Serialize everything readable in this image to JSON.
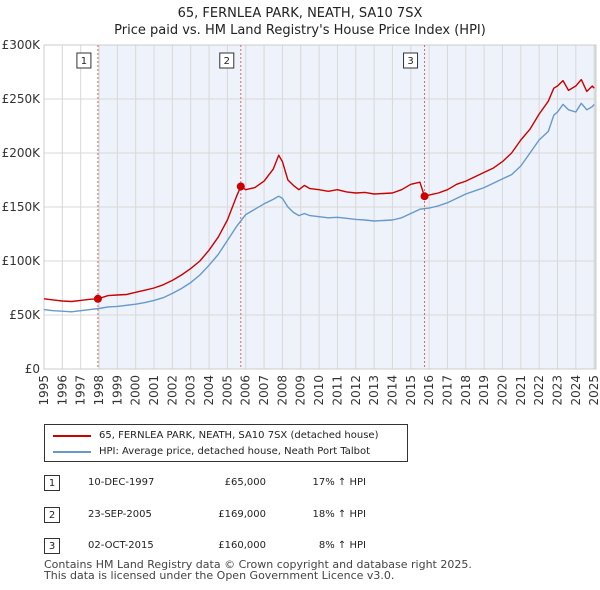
{
  "chart_data": {
    "type": "line",
    "title": "65, FERNLEA PARK, NEATH, SA10 7SX",
    "subtitle": "Price paid vs. HM Land Registry's House Price Index (HPI)",
    "xlabel": "",
    "ylabel": "",
    "xlim": [
      1995,
      2025.1
    ],
    "ylim": [
      0,
      300000
    ],
    "x_ticks": [
      1995,
      1996,
      1997,
      1998,
      1999,
      2000,
      2001,
      2002,
      2003,
      2004,
      2005,
      2006,
      2007,
      2008,
      2009,
      2010,
      2011,
      2012,
      2013,
      2014,
      2015,
      2016,
      2017,
      2018,
      2019,
      2020,
      2021,
      2022,
      2023,
      2024,
      2025
    ],
    "y_ticks": [
      {
        "value": 0,
        "label": "£0"
      },
      {
        "value": 50000,
        "label": "£50K"
      },
      {
        "value": 100000,
        "label": "£100K"
      },
      {
        "value": 150000,
        "label": "£150K"
      },
      {
        "value": 200000,
        "label": "£200K"
      },
      {
        "value": 250000,
        "label": "£250K"
      },
      {
        "value": 300000,
        "label": "£300K"
      }
    ],
    "grid": true,
    "series": [
      {
        "name": "65, FERNLEA PARK, NEATH, SA10 7SX (detached house)",
        "color": "#cc0000",
        "x": [
          1995.0,
          1995.5,
          1996.0,
          1996.5,
          1997.0,
          1997.5,
          1997.94,
          1998.5,
          1999.0,
          1999.5,
          2000.0,
          2000.5,
          2001.0,
          2001.5,
          2002.0,
          2002.5,
          2003.0,
          2003.5,
          2004.0,
          2004.5,
          2005.0,
          2005.5,
          2005.73,
          2006.0,
          2006.5,
          2007.0,
          2007.5,
          2007.8,
          2008.0,
          2008.3,
          2008.6,
          2008.9,
          2009.2,
          2009.5,
          2010.0,
          2010.5,
          2011.0,
          2011.5,
          2012.0,
          2012.5,
          2013.0,
          2013.5,
          2014.0,
          2014.5,
          2015.0,
          2015.5,
          2015.75,
          2016.0,
          2016.5,
          2017.0,
          2017.5,
          2018.0,
          2018.5,
          2019.0,
          2019.5,
          2020.0,
          2020.5,
          2021.0,
          2021.5,
          2022.0,
          2022.5,
          2022.8,
          2023.0,
          2023.3,
          2023.6,
          2024.0,
          2024.3,
          2024.6,
          2024.9,
          2025.0
        ],
        "values": [
          65000,
          64000,
          63000,
          62500,
          63500,
          64500,
          65000,
          68000,
          68500,
          69000,
          71000,
          73000,
          75000,
          78000,
          82000,
          87000,
          93000,
          100000,
          110000,
          122000,
          138000,
          160000,
          169000,
          166000,
          168000,
          174000,
          185000,
          198000,
          192000,
          175000,
          170000,
          166000,
          170000,
          167000,
          166000,
          164500,
          166000,
          164000,
          163000,
          163500,
          162000,
          162500,
          163000,
          166000,
          171000,
          173000,
          160000,
          161000,
          163000,
          166000,
          171000,
          174000,
          178000,
          182000,
          186000,
          192000,
          200000,
          212000,
          222000,
          236000,
          248000,
          260000,
          262000,
          267000,
          258000,
          262000,
          268000,
          257000,
          262000,
          260000
        ]
      },
      {
        "name": "HPI: Average price, detached house, Neath Port Talbot",
        "color": "#6699cc",
        "x": [
          1995.0,
          1995.5,
          1996.0,
          1996.5,
          1997.0,
          1997.5,
          1998.0,
          1998.5,
          1999.0,
          1999.5,
          2000.0,
          2000.5,
          2001.0,
          2001.5,
          2002.0,
          2002.5,
          2003.0,
          2003.5,
          2004.0,
          2004.5,
          2005.0,
          2005.5,
          2006.0,
          2006.5,
          2007.0,
          2007.5,
          2007.8,
          2008.0,
          2008.3,
          2008.6,
          2008.9,
          2009.2,
          2009.5,
          2010.0,
          2010.5,
          2011.0,
          2011.5,
          2012.0,
          2012.5,
          2013.0,
          2013.5,
          2014.0,
          2014.5,
          2015.0,
          2015.5,
          2016.0,
          2016.5,
          2017.0,
          2017.5,
          2018.0,
          2018.5,
          2019.0,
          2019.5,
          2020.0,
          2020.5,
          2021.0,
          2021.5,
          2022.0,
          2022.5,
          2022.8,
          2023.0,
          2023.3,
          2023.6,
          2024.0,
          2024.3,
          2024.6,
          2024.9,
          2025.0
        ],
        "values": [
          55000,
          54000,
          53500,
          53000,
          54000,
          55000,
          56000,
          57500,
          58000,
          59000,
          60000,
          61500,
          63500,
          66000,
          70000,
          74500,
          80000,
          87000,
          96000,
          106000,
          119000,
          132000,
          143000,
          148000,
          153000,
          157000,
          160000,
          158000,
          150000,
          145000,
          142000,
          144000,
          142000,
          141000,
          140000,
          140500,
          139500,
          138500,
          138000,
          137000,
          137500,
          138000,
          140000,
          144000,
          148000,
          149000,
          151000,
          154000,
          158000,
          162000,
          165000,
          168000,
          172000,
          176000,
          180000,
          188000,
          200000,
          212000,
          220000,
          235000,
          238000,
          245000,
          240000,
          238000,
          246000,
          240000,
          243000,
          245000
        ]
      }
    ],
    "markers": [
      {
        "label": "1",
        "date": "10-DEC-1997",
        "x": 1997.94,
        "value": 65000,
        "price_text": "£65,000",
        "hpi_text": "17% ↑ HPI"
      },
      {
        "label": "2",
        "date": "23-SEP-2005",
        "x": 2005.73,
        "value": 169000,
        "price_text": "£169,000",
        "hpi_text": "18% ↑ HPI"
      },
      {
        "label": "3",
        "date": "02-OCT-2015",
        "x": 2015.75,
        "value": 160000,
        "price_text": "£160,000",
        "hpi_text": "8% ↑ HPI"
      }
    ]
  },
  "legend": {
    "items": [
      {
        "label": "65, FERNLEA PARK, NEATH, SA10 7SX (detached house)",
        "color": "#cc0000"
      },
      {
        "label": "HPI: Average price, detached house, Neath Port Talbot",
        "color": "#6699cc"
      }
    ]
  },
  "footer": {
    "line1": "Contains HM Land Registry data © Crown copyright and database right 2025.",
    "line2": "This data is licensed under the Open Government Licence v3.0."
  }
}
